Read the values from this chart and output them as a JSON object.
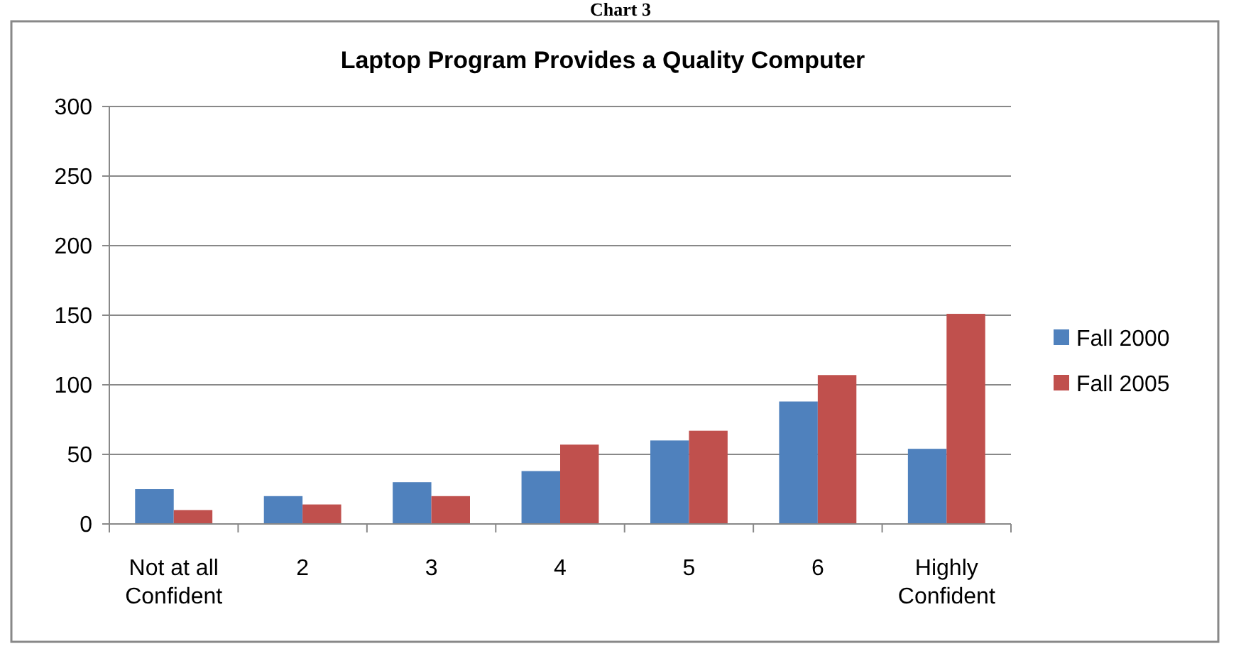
{
  "chart_data": {
    "type": "bar",
    "title": "Laptop Program Provides a Quality Computer",
    "annotations": [
      "Chart 3"
    ],
    "categories": [
      "Not at all Confident",
      "2",
      "3",
      "4",
      "5",
      "6",
      "Highly Confident"
    ],
    "series": [
      {
        "name": "Fall 2000",
        "color": "#4f81bd",
        "values": [
          25,
          20,
          30,
          38,
          60,
          88,
          54
        ]
      },
      {
        "name": "Fall 2005",
        "color": "#c0504d",
        "values": [
          10,
          14,
          20,
          57,
          67,
          107,
          151
        ]
      }
    ],
    "ylim": [
      0,
      300
    ],
    "yticks": [
      0,
      50,
      100,
      150,
      200,
      250,
      300
    ],
    "grid": "y",
    "legend": "right"
  }
}
